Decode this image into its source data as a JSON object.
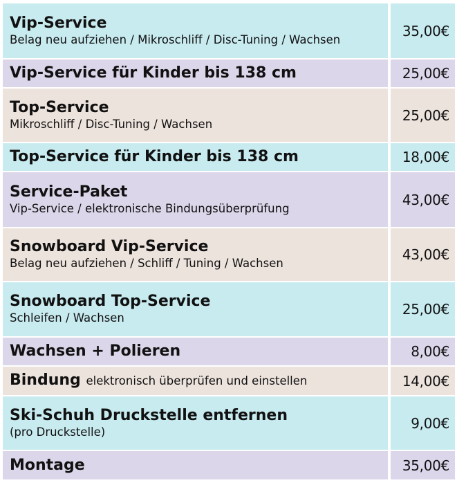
{
  "colors": {
    "blue": "#c8ebf0",
    "lavender": "#dcd6ea",
    "beige": "#ede3dd"
  },
  "rows": [
    {
      "title": "Vip-Service",
      "subtitle": "Belag neu aufziehen / Mikroschliff / Disc-Tuning / Wachsen",
      "price": "35,00€",
      "color": "blue"
    },
    {
      "title": "Vip-Service für Kinder bis 138 cm",
      "price": "25,00€",
      "color": "lavender"
    },
    {
      "title": "Top-Service",
      "subtitle": "Mikroschliff / Disc-Tuning / Wachsen",
      "price": "25,00€",
      "color": "beige"
    },
    {
      "title": "Top-Service für Kinder bis 138 cm",
      "price": "18,00€",
      "color": "blue"
    },
    {
      "title": "Service-Paket",
      "subtitle": "Vip-Service / elektronische Bindungsüberprüfung",
      "price": "43,00€",
      "color": "lavender"
    },
    {
      "title": "Snowboard Vip-Service",
      "subtitle": "Belag neu aufziehen / Schliff / Tuning / Wachsen",
      "price": "43,00€",
      "color": "beige"
    },
    {
      "title": "Snowboard Top-Service",
      "subtitle": "Schleifen / Wachsen",
      "price": "25,00€",
      "color": "blue"
    },
    {
      "title": "Wachsen + Polieren",
      "price": "8,00€",
      "color": "lavender"
    },
    {
      "title": "Bindung",
      "inline_subtitle": "elektronisch überprüfen und einstellen",
      "price": "14,00€",
      "color": "beige"
    },
    {
      "title": "Ski-Schuh Druckstelle entfernen",
      "subtitle": "(pro Druckstelle)",
      "price": "9,00€",
      "color": "blue"
    },
    {
      "title": "Montage",
      "price": "35,00€",
      "color": "lavender"
    }
  ]
}
